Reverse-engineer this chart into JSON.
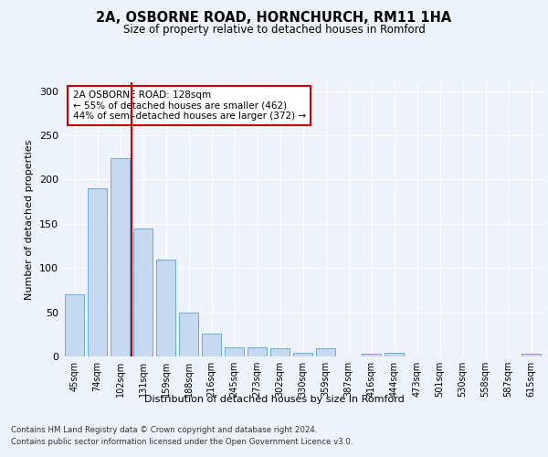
{
  "title1": "2A, OSBORNE ROAD, HORNCHURCH, RM11 1HA",
  "title2": "Size of property relative to detached houses in Romford",
  "xlabel": "Distribution of detached houses by size in Romford",
  "ylabel": "Number of detached properties",
  "categories": [
    "45sqm",
    "74sqm",
    "102sqm",
    "131sqm",
    "159sqm",
    "188sqm",
    "216sqm",
    "245sqm",
    "273sqm",
    "302sqm",
    "330sqm",
    "359sqm",
    "387sqm",
    "416sqm",
    "444sqm",
    "473sqm",
    "501sqm",
    "530sqm",
    "558sqm",
    "587sqm",
    "615sqm"
  ],
  "values": [
    70,
    190,
    224,
    145,
    110,
    50,
    26,
    10,
    10,
    9,
    4,
    9,
    0,
    3,
    4,
    0,
    0,
    0,
    0,
    0,
    3
  ],
  "bar_color": "#c5d8f0",
  "bar_edge_color": "#6aaed6",
  "vline_pos": 2.5,
  "annotation_line1": "2A OSBORNE ROAD: 128sqm",
  "annotation_line2": "← 55% of detached houses are smaller (462)",
  "annotation_line3": "44% of semi-detached houses are larger (372) →",
  "vline_color": "#cc0000",
  "ylim": [
    0,
    310
  ],
  "yticks": [
    0,
    50,
    100,
    150,
    200,
    250,
    300
  ],
  "footer1": "Contains HM Land Registry data © Crown copyright and database right 2024.",
  "footer2": "Contains public sector information licensed under the Open Government Licence v3.0.",
  "bg_color": "#eef2fb",
  "plot_bg_color": "#eef2fb"
}
